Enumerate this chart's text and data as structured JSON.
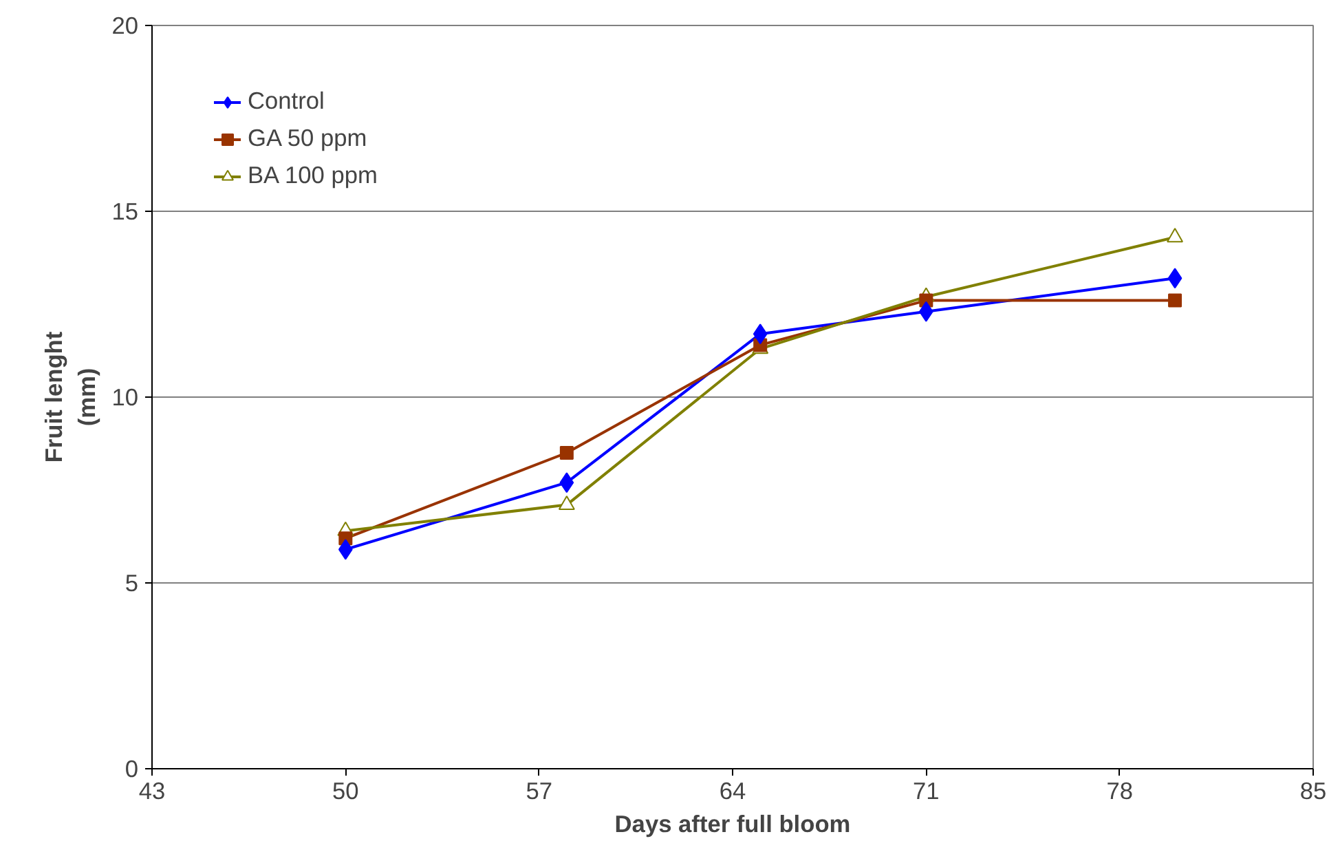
{
  "chart_data": {
    "type": "line",
    "xlabel": "Days after full bloom",
    "ylabel": "Fruit lenght\n(mm)",
    "x": [
      50,
      58,
      65,
      71,
      80
    ],
    "series": [
      {
        "name": "Control",
        "color": "#0000ff",
        "marker": "diamond",
        "values": [
          5.9,
          7.7,
          11.7,
          12.3,
          13.2
        ]
      },
      {
        "name": "GA 50 ppm",
        "color": "#993300",
        "marker": "square",
        "values": [
          6.2,
          8.5,
          11.4,
          12.6,
          12.6
        ]
      },
      {
        "name": "BA 100 ppm",
        "color": "#808000",
        "marker": "triangle",
        "values": [
          6.4,
          7.1,
          11.3,
          12.7,
          14.3
        ]
      }
    ],
    "xlim": [
      43,
      85
    ],
    "xticks": [
      43,
      50,
      57,
      64,
      71,
      78,
      85
    ],
    "ylim": [
      0,
      20
    ],
    "yticks": [
      0,
      5,
      10,
      15,
      20
    ],
    "grid": "y",
    "legend": "top left",
    "line_style": "solid"
  }
}
